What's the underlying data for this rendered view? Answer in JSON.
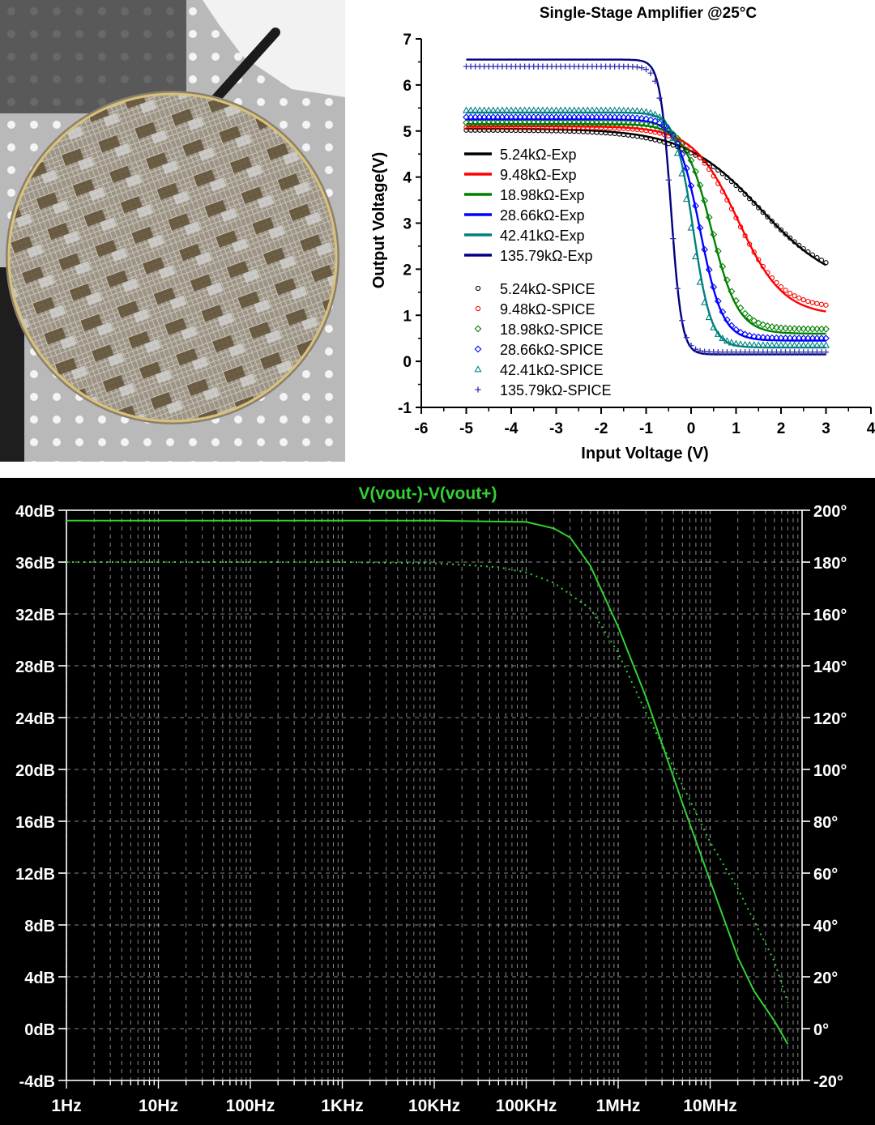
{
  "chart_data": [
    {
      "type": "image",
      "description_label": "wafer-photo",
      "colors": {
        "metal": "#b8b8b8",
        "die": "#6b5a3e",
        "dark": "#2a2a2a",
        "glove": "#f2f2f2"
      }
    },
    {
      "type": "line",
      "title": "Single-Stage Amplifier @25°C",
      "xlabel": "Input Voltage (V)",
      "ylabel": "Output Voltage(V)",
      "xlim": [
        -6,
        4
      ],
      "ylim": [
        -1,
        7
      ],
      "xticks": [
        "-6",
        "-5",
        "-4",
        "-3",
        "-2",
        "-1",
        "0",
        "1",
        "2",
        "3",
        "4"
      ],
      "yticks": [
        "-1",
        "0",
        "1",
        "2",
        "3",
        "4",
        "5",
        "6",
        "7"
      ],
      "legend_position": "left",
      "series": [
        {
          "name": "5.24kΩ-Exp",
          "kind": "line",
          "color": "#000000",
          "params": {
            "hi": 5.05,
            "lo": 1.55,
            "center": 1.55,
            "width": 0.85
          }
        },
        {
          "name": "9.48kΩ-Exp",
          "kind": "line",
          "color": "#ff0000",
          "params": {
            "hi": 5.1,
            "lo": 1.0,
            "center": 1.05,
            "width": 0.5
          }
        },
        {
          "name": "18.98kΩ-Exp",
          "kind": "line",
          "color": "#008000",
          "params": {
            "hi": 5.15,
            "lo": 0.6,
            "center": 0.45,
            "width": 0.3
          }
        },
        {
          "name": "28.66kΩ-Exp",
          "kind": "line",
          "color": "#0000ff",
          "params": {
            "hi": 5.25,
            "lo": 0.45,
            "center": 0.2,
            "width": 0.25
          }
        },
        {
          "name": "42.41kΩ-Exp",
          "kind": "line",
          "color": "#008080",
          "params": {
            "hi": 5.4,
            "lo": 0.3,
            "center": 0.05,
            "width": 0.2
          }
        },
        {
          "name": "135.79kΩ-Exp",
          "kind": "line",
          "color": "#000080",
          "params": {
            "hi": 6.55,
            "lo": 0.15,
            "center": -0.45,
            "width": 0.12
          }
        },
        {
          "name": "5.24kΩ-SPICE",
          "kind": "marker",
          "marker": "circle",
          "color": "#000000",
          "params": {
            "hi": 5.02,
            "lo": 1.65,
            "center": 1.5,
            "width": 0.85
          }
        },
        {
          "name": "9.48kΩ-SPICE",
          "kind": "marker",
          "marker": "circle",
          "color": "#ff0000",
          "params": {
            "hi": 5.08,
            "lo": 1.15,
            "center": 1.0,
            "width": 0.5
          }
        },
        {
          "name": "18.98kΩ-SPICE",
          "kind": "marker",
          "marker": "diamond",
          "color": "#008000",
          "params": {
            "hi": 5.18,
            "lo": 0.7,
            "center": 0.45,
            "width": 0.3
          }
        },
        {
          "name": "28.66kΩ-SPICE",
          "kind": "marker",
          "marker": "diamond",
          "color": "#0000ff",
          "params": {
            "hi": 5.3,
            "lo": 0.5,
            "center": 0.2,
            "width": 0.25
          }
        },
        {
          "name": "42.41kΩ-SPICE",
          "kind": "marker",
          "marker": "triangle",
          "color": "#008080",
          "params": {
            "hi": 5.45,
            "lo": 0.35,
            "center": 0.0,
            "width": 0.2
          }
        },
        {
          "name": "135.79kΩ-SPICE",
          "kind": "marker",
          "marker": "plus",
          "color": "#3030b0",
          "params": {
            "hi": 6.4,
            "lo": 0.2,
            "center": -0.45,
            "width": 0.12
          }
        }
      ]
    },
    {
      "type": "line",
      "title": "V(vout-)-V(vout+)",
      "xlabel": "",
      "ylabel": "",
      "xscale": "log",
      "xlim_hz": [
        1,
        100000000
      ],
      "ylim_db": [
        -4,
        40
      ],
      "ylim_deg": [
        -20,
        200
      ],
      "xticks": [
        {
          "label": "1Hz",
          "value": 1
        },
        {
          "label": "10Hz",
          "value": 10
        },
        {
          "label": "100Hz",
          "value": 100
        },
        {
          "label": "1KHz",
          "value": 1000
        },
        {
          "label": "10KHz",
          "value": 10000
        },
        {
          "label": "100KHz",
          "value": 100000
        },
        {
          "label": "1MHz",
          "value": 1000000
        },
        {
          "label": "10MHz",
          "value": 10000000
        }
      ],
      "yticks_left": [
        "40dB",
        "36dB",
        "32dB",
        "28dB",
        "24dB",
        "20dB",
        "16dB",
        "12dB",
        "8dB",
        "4dB",
        "0dB",
        "-4dB"
      ],
      "yticks_right": [
        "200°",
        "180°",
        "160°",
        "140°",
        "120°",
        "100°",
        "80°",
        "60°",
        "40°",
        "20°",
        "0°",
        "-20°"
      ],
      "colors": {
        "background": "#000000",
        "trace": "#32d232",
        "grid": "#b4b4b4",
        "axis": "#ffffff"
      },
      "series": [
        {
          "name": "magnitude (dB)",
          "x_hz": [
            1,
            10,
            100,
            1000,
            10000,
            100000,
            200000,
            300000,
            500000,
            1000000,
            2000000,
            5000000,
            10000000,
            20000000,
            30000000,
            50000000,
            70000000
          ],
          "y_db": [
            39.2,
            39.2,
            39.2,
            39.2,
            39.2,
            39.1,
            38.6,
            37.9,
            35.7,
            31.0,
            25.6,
            17.4,
            11.4,
            5.5,
            2.9,
            0.6,
            -1.2
          ]
        },
        {
          "name": "phase (deg)",
          "x_hz": [
            1,
            10,
            100,
            1000,
            10000,
            20000,
            50000,
            100000,
            200000,
            500000,
            1000000,
            2000000,
            5000000,
            10000000,
            20000000,
            50000000,
            70000000
          ],
          "y_deg": [
            180,
            180,
            180,
            180,
            179.5,
            179,
            178,
            176,
            172,
            162,
            145,
            122,
            94,
            72,
            54,
            26,
            10
          ]
        }
      ]
    }
  ]
}
